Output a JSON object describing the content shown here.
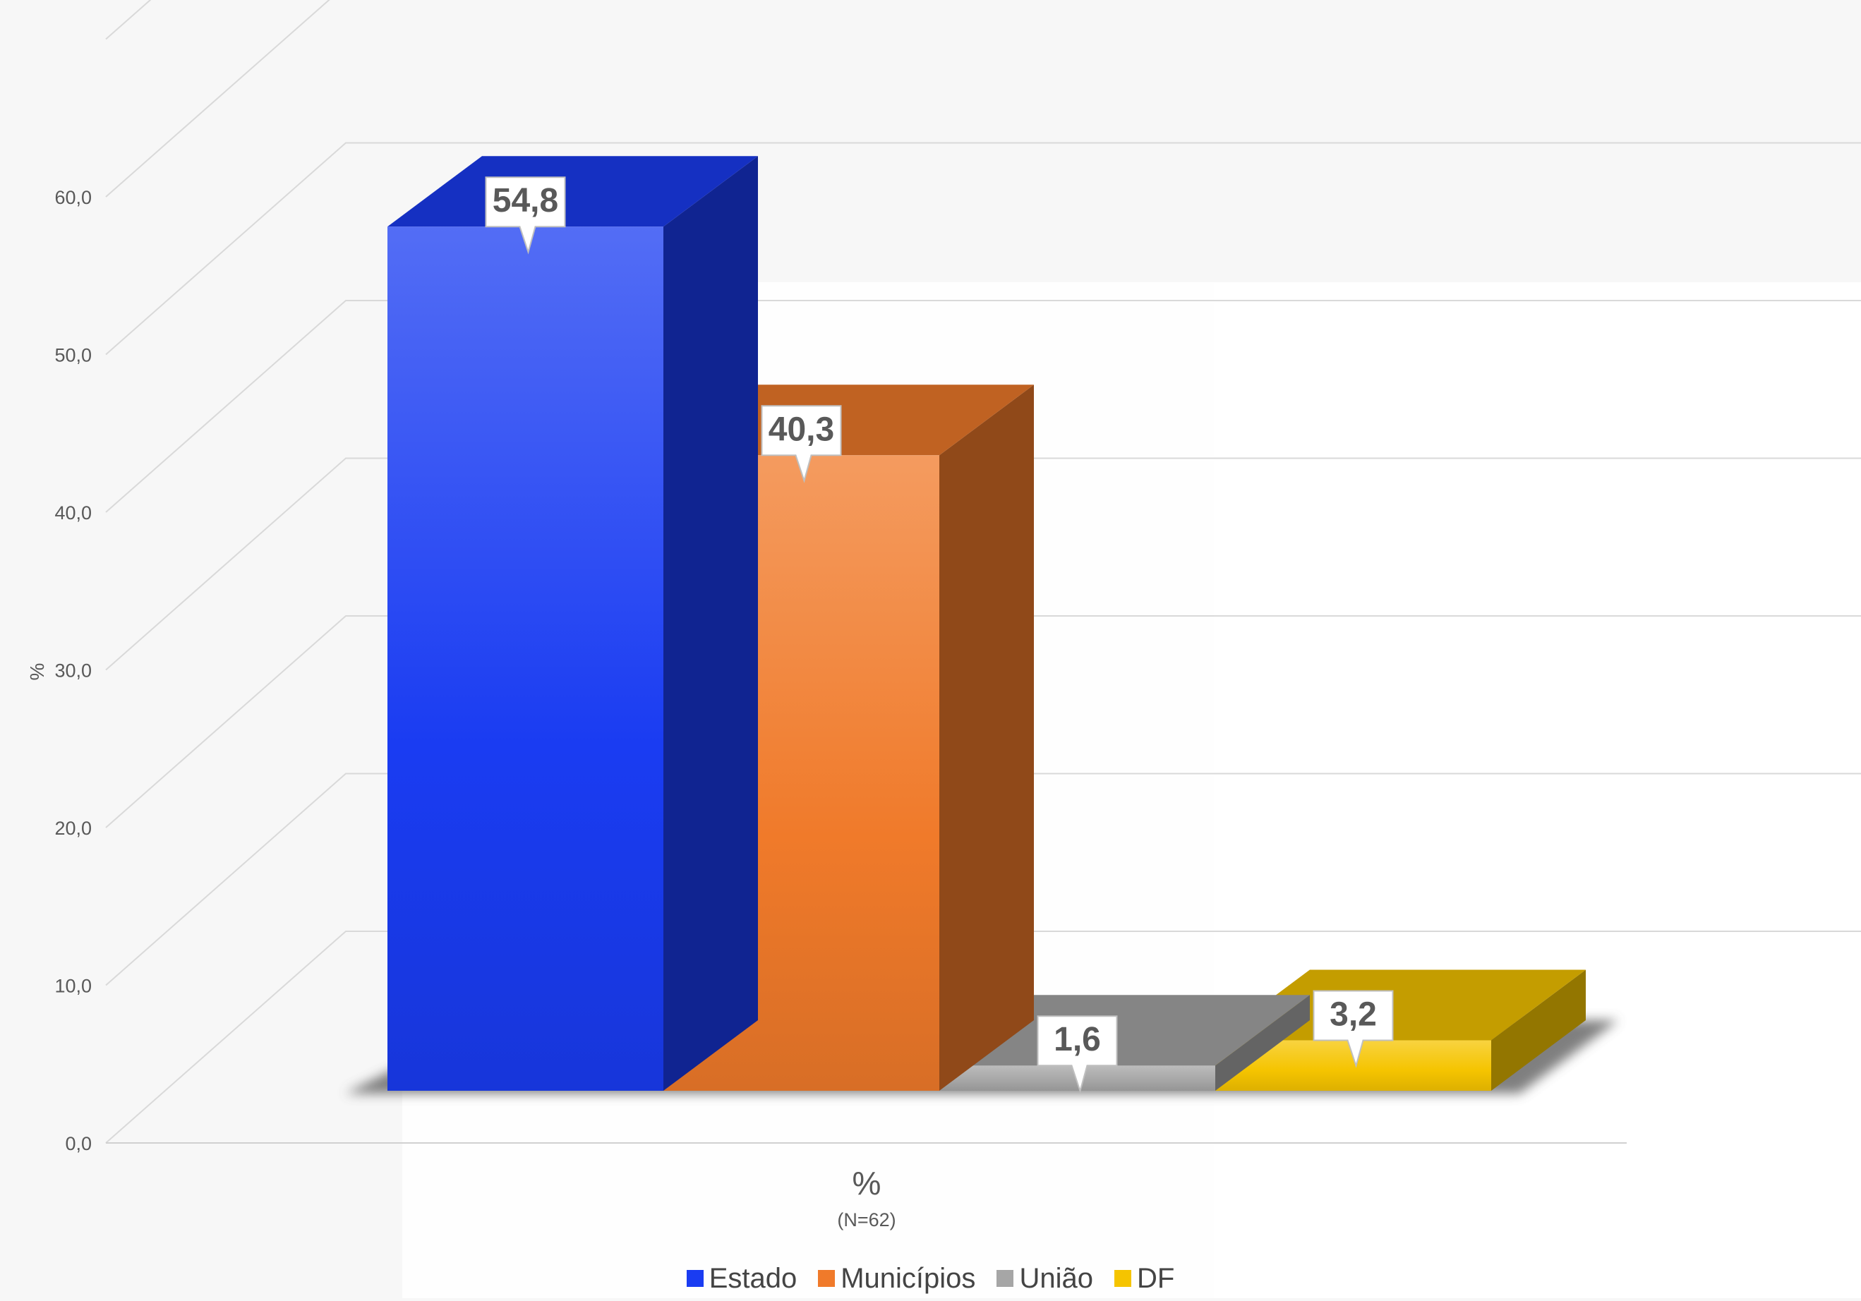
{
  "chart_data": {
    "type": "bar",
    "title": "",
    "ylabel": "%",
    "xlabel": "%",
    "xsublabel": "(N=62)",
    "ylim": [
      0,
      70
    ],
    "yticks": [
      "0,0",
      "10,0",
      "20,0",
      "30,0",
      "40,0",
      "50,0",
      "60,0"
    ],
    "grid": true,
    "legend_position": "bottom",
    "categories": [
      "%"
    ],
    "series": [
      {
        "name": "Estado",
        "value": 54.8,
        "label": "54,8",
        "color": "#1a3cf2"
      },
      {
        "name": "Municípios",
        "value": 40.3,
        "label": "40,3",
        "color": "#f07a2a"
      },
      {
        "name": "União",
        "value": 1.6,
        "label": "1,6",
        "color": "#a6a6a6"
      },
      {
        "name": "DF",
        "value": 3.2,
        "label": "3,2",
        "color": "#f5c400"
      }
    ]
  }
}
